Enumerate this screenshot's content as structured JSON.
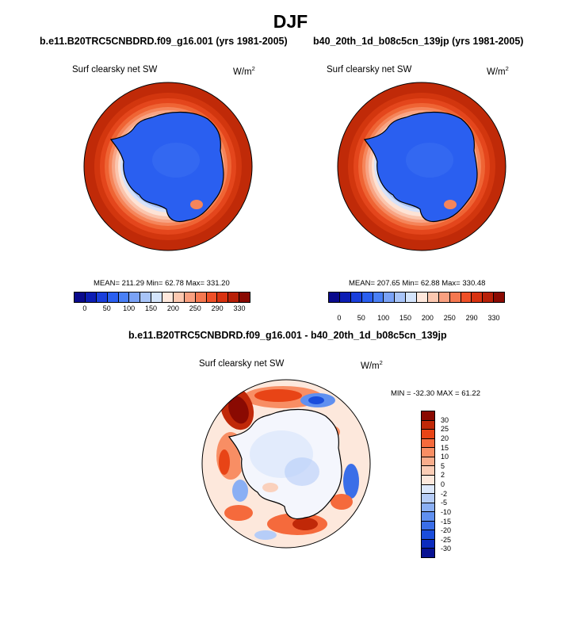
{
  "figure_title": "DJF",
  "panels": [
    {
      "case": "b.e11.B20TRC5CNBDRD.f09_g16.001 (yrs 1981-2005)",
      "variable": "Surf clearsky net SW",
      "unit_base": "W/m",
      "unit_exp": "2",
      "stats": "MEAN= 211.29  Min=  62.78  Max= 331.20"
    },
    {
      "case": "b40_20th_1d_b08c5cn_139jp (yrs 1981-2005)",
      "variable": "Surf clearsky net SW",
      "unit_base": "W/m",
      "unit_exp": "2",
      "stats": "MEAN= 207.65  Min=  62.88  Max= 330.48"
    }
  ],
  "diff_panel": {
    "title": "b.e11.B20TRC5CNBDRD.f09_g16.001 - b40_20th_1d_b08c5cn_139jp",
    "variable": "Surf clearsky net SW",
    "unit_base": "W/m",
    "unit_exp": "2",
    "stats": "MIN = -32.30 MAX =  61.22"
  },
  "colorbar": {
    "tick_labels": [
      "0",
      "50",
      "100",
      "150",
      "200",
      "250",
      "290",
      "330"
    ],
    "colors": [
      "#0a0a8c",
      "#0c1db4",
      "#1a3fdc",
      "#2a5ff0",
      "#4a80f6",
      "#7aa2f6",
      "#a8c4f8",
      "#d4e4fb",
      "#ffe8dc",
      "#fcc8b0",
      "#f9a080",
      "#f57850",
      "#ef5028",
      "#d83210",
      "#b82008",
      "#8a0a02"
    ]
  },
  "diff_colorbar": {
    "tick_labels": [
      "30",
      "25",
      "20",
      "15",
      "10",
      "5",
      "2",
      "0",
      "-2",
      "-5",
      "-10",
      "-15",
      "-20",
      "-25",
      "-30"
    ],
    "colors": [
      "#8a0a02",
      "#c02808",
      "#e84416",
      "#f56a3c",
      "#f88e64",
      "#f9ad8c",
      "#fbcdb6",
      "#fde8dc",
      "#dde8fb",
      "#b6cdf8",
      "#8aaff4",
      "#6090f0",
      "#3a6ee8",
      "#1a4ddc",
      "#0c2cbe",
      "#081292"
    ]
  }
}
